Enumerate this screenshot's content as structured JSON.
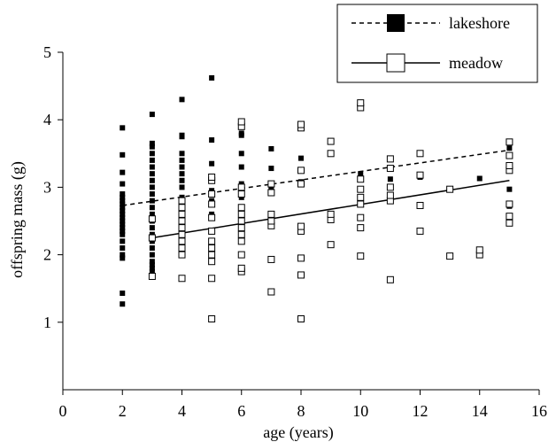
{
  "chart_data": {
    "type": "scatter",
    "xlabel": "age (years)",
    "ylabel": "offspring mass (g)",
    "xlim": [
      0,
      16
    ],
    "ylim": [
      0,
      5
    ],
    "x_ticks": [
      0,
      2,
      4,
      6,
      8,
      10,
      12,
      14,
      16
    ],
    "y_ticks": [
      1,
      2,
      3,
      4,
      5
    ],
    "legend_position": "top-right",
    "series": [
      {
        "name": "lakeshore",
        "marker": "filled-square",
        "color": "#000000",
        "trend_line": {
          "style": "dashed",
          "x_start": 2,
          "y_start": 2.73,
          "x_end": 15,
          "y_end": 3.55
        },
        "points": [
          [
            2,
            1.27
          ],
          [
            2,
            1.43
          ],
          [
            2,
            1.95
          ],
          [
            2,
            2.0
          ],
          [
            2,
            2.1
          ],
          [
            2,
            2.2
          ],
          [
            2,
            2.3
          ],
          [
            2,
            2.35
          ],
          [
            2,
            2.4
          ],
          [
            2,
            2.45
          ],
          [
            2,
            2.5
          ],
          [
            2,
            2.55
          ],
          [
            2,
            2.6
          ],
          [
            2,
            2.65
          ],
          [
            2,
            2.7
          ],
          [
            2,
            2.75
          ],
          [
            2,
            2.8
          ],
          [
            2,
            2.85
          ],
          [
            2,
            2.9
          ],
          [
            2,
            3.05
          ],
          [
            2,
            3.22
          ],
          [
            2,
            3.48
          ],
          [
            2,
            3.88
          ],
          [
            3,
            1.75
          ],
          [
            3,
            1.8
          ],
          [
            3,
            1.85
          ],
          [
            3,
            1.9
          ],
          [
            3,
            2.0
          ],
          [
            3,
            2.1
          ],
          [
            3,
            2.2
          ],
          [
            3,
            2.3
          ],
          [
            3,
            2.4
          ],
          [
            3,
            2.5
          ],
          [
            3,
            2.6
          ],
          [
            3,
            2.7
          ],
          [
            3,
            2.8
          ],
          [
            3,
            2.9
          ],
          [
            3,
            3.0
          ],
          [
            3,
            3.1
          ],
          [
            3,
            3.2
          ],
          [
            3,
            3.3
          ],
          [
            3,
            3.4
          ],
          [
            3,
            3.5
          ],
          [
            3,
            3.6
          ],
          [
            3,
            3.65
          ],
          [
            3,
            4.08
          ],
          [
            4,
            2.05
          ],
          [
            4,
            2.2
          ],
          [
            4,
            2.4
          ],
          [
            4,
            2.6
          ],
          [
            4,
            2.75
          ],
          [
            4,
            2.85
          ],
          [
            4,
            3.0
          ],
          [
            4,
            3.1
          ],
          [
            4,
            3.2
          ],
          [
            4,
            3.3
          ],
          [
            4,
            3.4
          ],
          [
            4,
            3.5
          ],
          [
            4,
            3.75
          ],
          [
            4,
            3.77
          ],
          [
            4,
            4.3
          ],
          [
            5,
            2.35
          ],
          [
            5,
            2.6
          ],
          [
            5,
            2.8
          ],
          [
            5,
            2.95
          ],
          [
            5,
            3.1
          ],
          [
            5,
            3.35
          ],
          [
            5,
            3.7
          ],
          [
            5,
            4.62
          ],
          [
            6,
            2.6
          ],
          [
            6,
            2.85
          ],
          [
            6,
            3.05
          ],
          [
            6,
            3.3
          ],
          [
            6,
            3.5
          ],
          [
            6,
            3.77
          ],
          [
            6,
            3.8
          ],
          [
            7,
            2.5
          ],
          [
            7,
            2.97
          ],
          [
            7,
            3.28
          ],
          [
            7,
            3.57
          ],
          [
            8,
            3.08
          ],
          [
            8,
            3.43
          ],
          [
            10,
            3.2
          ],
          [
            11,
            3.12
          ],
          [
            12,
            3.15
          ],
          [
            14,
            3.13
          ],
          [
            15,
            2.72
          ],
          [
            15,
            2.97
          ],
          [
            15,
            3.58
          ]
        ]
      },
      {
        "name": "meadow",
        "marker": "open-square",
        "color": "#000000",
        "trend_line": {
          "style": "solid",
          "x_start": 3,
          "y_start": 2.25,
          "x_end": 15,
          "y_end": 3.1
        },
        "points": [
          [
            3,
            1.68
          ],
          [
            3,
            2.25
          ],
          [
            3,
            2.53
          ],
          [
            4,
            1.65
          ],
          [
            4,
            2.0
          ],
          [
            4,
            2.1
          ],
          [
            4,
            2.2
          ],
          [
            4,
            2.3
          ],
          [
            4,
            2.4
          ],
          [
            4,
            2.5
          ],
          [
            4,
            2.6
          ],
          [
            4,
            2.7
          ],
          [
            4,
            2.8
          ],
          [
            5,
            1.05
          ],
          [
            5,
            1.65
          ],
          [
            5,
            1.9
          ],
          [
            5,
            2.0
          ],
          [
            5,
            2.1
          ],
          [
            5,
            2.2
          ],
          [
            5,
            2.35
          ],
          [
            5,
            2.55
          ],
          [
            5,
            2.75
          ],
          [
            5,
            2.9
          ],
          [
            5,
            3.1
          ],
          [
            5,
            3.15
          ],
          [
            6,
            1.75
          ],
          [
            6,
            1.8
          ],
          [
            6,
            2.0
          ],
          [
            6,
            2.2
          ],
          [
            6,
            2.3
          ],
          [
            6,
            2.4
          ],
          [
            6,
            2.5
          ],
          [
            6,
            2.6
          ],
          [
            6,
            2.7
          ],
          [
            6,
            2.9
          ],
          [
            6,
            3.0
          ],
          [
            6,
            3.9
          ],
          [
            6,
            3.97
          ],
          [
            7,
            1.45
          ],
          [
            7,
            1.93
          ],
          [
            7,
            2.43
          ],
          [
            7,
            2.5
          ],
          [
            7,
            2.6
          ],
          [
            7,
            2.92
          ],
          [
            7,
            3.05
          ],
          [
            8,
            1.05
          ],
          [
            8,
            1.7
          ],
          [
            8,
            1.95
          ],
          [
            8,
            2.35
          ],
          [
            8,
            2.42
          ],
          [
            8,
            3.05
          ],
          [
            8,
            3.25
          ],
          [
            8,
            3.88
          ],
          [
            8,
            3.93
          ],
          [
            9,
            2.15
          ],
          [
            9,
            2.52
          ],
          [
            9,
            2.6
          ],
          [
            9,
            3.5
          ],
          [
            9,
            3.68
          ],
          [
            10,
            1.98
          ],
          [
            10,
            2.4
          ],
          [
            10,
            2.55
          ],
          [
            10,
            2.75
          ],
          [
            10,
            2.85
          ],
          [
            10,
            2.97
          ],
          [
            10,
            3.12
          ],
          [
            10,
            4.18
          ],
          [
            10,
            4.25
          ],
          [
            11,
            1.63
          ],
          [
            11,
            2.8
          ],
          [
            11,
            2.88
          ],
          [
            11,
            3.0
          ],
          [
            11,
            3.28
          ],
          [
            11,
            3.42
          ],
          [
            12,
            2.35
          ],
          [
            12,
            2.73
          ],
          [
            12,
            3.18
          ],
          [
            12,
            3.5
          ],
          [
            13,
            1.98
          ],
          [
            13,
            2.97
          ],
          [
            14,
            2.0
          ],
          [
            14,
            2.07
          ],
          [
            15,
            2.47
          ],
          [
            15,
            2.57
          ],
          [
            15,
            2.75
          ],
          [
            15,
            3.25
          ],
          [
            15,
            3.32
          ],
          [
            15,
            3.47
          ],
          [
            15,
            3.67
          ]
        ]
      }
    ]
  }
}
